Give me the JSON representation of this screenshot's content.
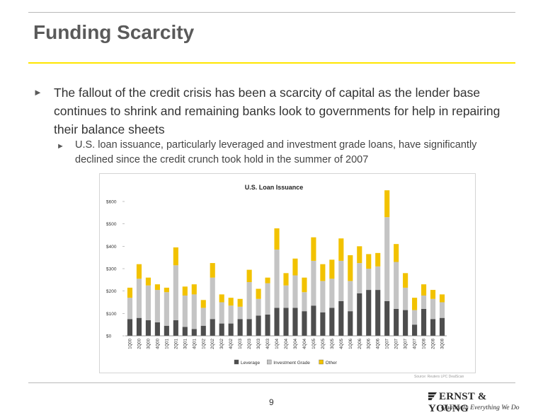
{
  "slide": {
    "title": "Funding Scarcity",
    "bullet_1": "The fallout of the credit crisis has been a scarcity of capital as the lender base continues to shrink and remaining banks look to governments for help in repairing their balance sheets",
    "bullet_2": "U.S. loan issuance, particularly leveraged and investment grade loans, have significantly declined since the credit crunch took hold in the summer of 2007",
    "source": "Source: Reuters LPC DealScan",
    "page_number": "9",
    "logo_name": "ERNST & YOUNG",
    "logo_tagline": "Quality In Everything We Do"
  },
  "chart_data": {
    "type": "bar",
    "stacked": true,
    "title": "U.S. Loan Issuance",
    "ylim": [
      0,
      600
    ],
    "y_ticks": [
      "$0",
      "$100",
      "$200",
      "$300",
      "$400",
      "$500",
      "$600"
    ],
    "grid": false,
    "legend_position": "bottom",
    "categories": [
      "1Q00",
      "2Q00",
      "3Q00",
      "4Q00",
      "1Q01",
      "2Q01",
      "3Q01",
      "4Q01",
      "1Q02",
      "2Q02",
      "3Q02",
      "4Q02",
      "1Q03",
      "2Q03",
      "3Q03",
      "4Q03",
      "1Q04",
      "2Q04",
      "3Q04",
      "4Q04",
      "1Q05",
      "2Q05",
      "3Q05",
      "4Q05",
      "1Q06",
      "2Q06",
      "3Q06",
      "4Q06",
      "1Q07",
      "2Q07",
      "3Q07",
      "4Q07",
      "1Q08",
      "2Q08",
      "3Q08"
    ],
    "series": [
      {
        "name": "Leverage",
        "color": "#4d4d4d",
        "values": [
          75,
          80,
          70,
          60,
          45,
          70,
          40,
          30,
          45,
          75,
          55,
          55,
          75,
          75,
          90,
          95,
          125,
          125,
          125,
          110,
          135,
          105,
          125,
          155,
          110,
          190,
          205,
          205,
          155,
          120,
          115,
          50,
          120,
          75,
          80
        ]
      },
      {
        "name": "Investment Grade",
        "color": "#c4c4c4",
        "values": [
          95,
          175,
          155,
          145,
          150,
          245,
          140,
          155,
          80,
          185,
          95,
          80,
          55,
          165,
          75,
          140,
          260,
          100,
          145,
          85,
          200,
          140,
          130,
          180,
          135,
          135,
          95,
          105,
          375,
          210,
          100,
          65,
          60,
          90,
          70
        ]
      },
      {
        "name": "Other",
        "color": "#f2c200",
        "values": [
          45,
          65,
          35,
          25,
          20,
          80,
          40,
          45,
          35,
          65,
          35,
          35,
          35,
          55,
          45,
          25,
          95,
          55,
          75,
          65,
          105,
          75,
          85,
          100,
          115,
          75,
          65,
          60,
          120,
          80,
          65,
          55,
          50,
          40,
          35
        ]
      }
    ]
  }
}
